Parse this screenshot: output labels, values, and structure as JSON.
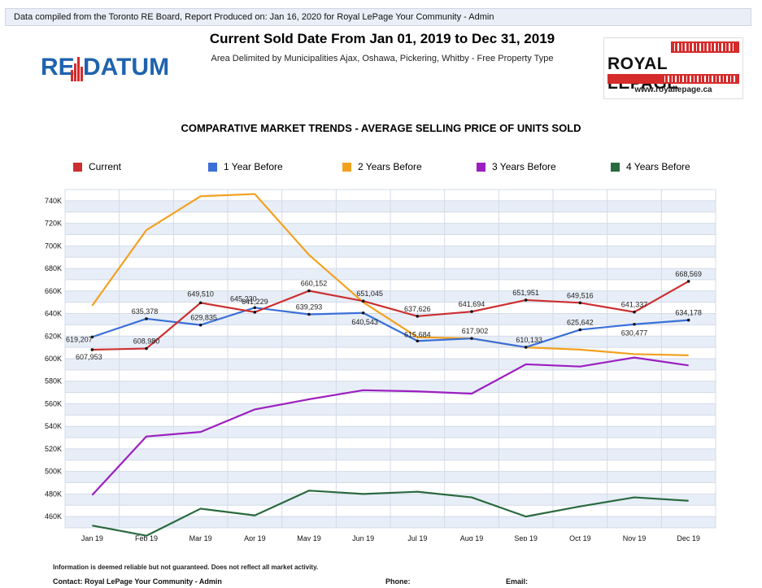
{
  "header": {
    "topbar_text": "Data compiled from the Toronto RE Board, Report Produced on: Jan 16, 2020 for Royal LePage Your Community -  Admin",
    "title": "Current Sold Date From Jan 01, 2019 to Dec 31, 2019",
    "subtitle": "Area Delimited by Municipalities Ajax, Oshawa, Pickering, Whitby - Free Property Type"
  },
  "logos": {
    "left_re": "RE",
    "left_datum": "DATUM",
    "right_brand": "ROYAL LEPAGE",
    "right_url": "www.royallepage.ca",
    "left_color": "#1f63ae",
    "right_bar_color": "#d52b2b"
  },
  "footer": {
    "note": "Information is deemed reliable but not guaranteed. Does not reflect all market activity.",
    "contact": "Contact: Royal LePage Your Community -  Admin",
    "phone": "Phone:",
    "email": "Email:"
  },
  "chart_data": {
    "type": "line",
    "title": "COMPARATIVE MARKET TRENDS - AVERAGE SELLING PRICE OF UNITS SOLD",
    "categories": [
      "Jan 19",
      "Feb 19",
      "Mar 19",
      "Apr 19",
      "May 19",
      "Jun 19",
      "Jul 19",
      "Aug 19",
      "Sep 19",
      "Oct 19",
      "Nov 19",
      "Dec 19"
    ],
    "ylim": [
      450000,
      750000
    ],
    "yticks": [
      460000,
      480000,
      500000,
      520000,
      540000,
      560000,
      580000,
      600000,
      620000,
      640000,
      660000,
      680000,
      700000,
      720000,
      740000
    ],
    "ytick_labels": [
      "460K",
      "480K",
      "500K",
      "520K",
      "540K",
      "560K",
      "580K",
      "600K",
      "620K",
      "640K",
      "660K",
      "680K",
      "700K",
      "720K",
      "740K"
    ],
    "grid": true,
    "legend_position": "top",
    "series": [
      {
        "name": "Current",
        "color": "#cc2f2f",
        "values": [
          607953,
          608980,
          649510,
          641229,
          660152,
          651045,
          637626,
          641694,
          651951,
          649516,
          641337,
          668569
        ],
        "labels": [
          "607,953",
          "608,980",
          "649,510",
          "641,229",
          "660,152",
          "651,045",
          "637,626",
          "641,694",
          "651,951",
          "649,516",
          "641,337",
          "668,569"
        ]
      },
      {
        "name": "1 Year Before",
        "color": "#3a70d8",
        "values": [
          619207,
          635378,
          629835,
          645230,
          639293,
          640543,
          615684,
          617902,
          610133,
          625642,
          630477,
          634178
        ],
        "labels": [
          "619,207",
          "635,378",
          "629,835",
          "645,230",
          "639,293",
          "640,543",
          "615,684",
          "617,902",
          "610,133",
          "625,642",
          "630,477",
          "634,178"
        ]
      },
      {
        "name": "2 Years Before",
        "color": "#f2a11f",
        "values": [
          647000,
          714000,
          744000,
          746000,
          692000,
          650000,
          619000,
          618000,
          610000,
          608000,
          604000,
          603000
        ]
      },
      {
        "name": "3 Years Before",
        "color": "#9b1fbf",
        "values": [
          479000,
          531000,
          535000,
          555000,
          564000,
          572000,
          571000,
          569000,
          595000,
          593000,
          601000,
          594000
        ]
      },
      {
        "name": "4 Years Before",
        "color": "#2a6a3f",
        "values": [
          452000,
          443000,
          467000,
          461000,
          483000,
          480000,
          482000,
          477000,
          460000,
          469000,
          477000,
          474000
        ]
      }
    ]
  }
}
